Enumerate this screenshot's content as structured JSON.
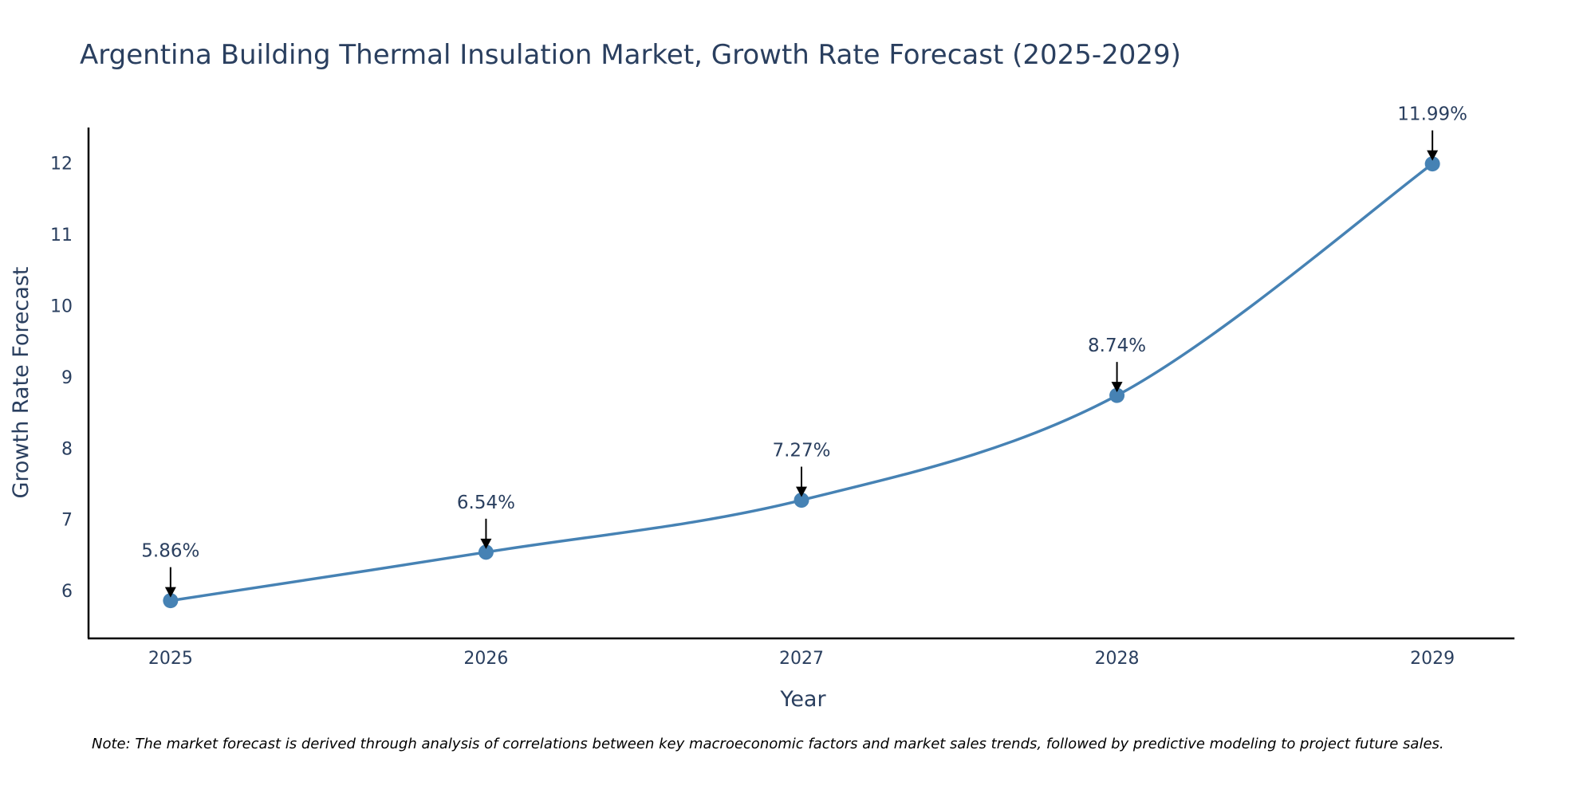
{
  "chart_data": {
    "type": "line",
    "title": "Argentina Building Thermal Insulation Market, Growth Rate Forecast (2025-2029)",
    "xlabel": "Year",
    "ylabel": "Growth Rate Forecast",
    "categories": [
      "2025",
      "2026",
      "2027",
      "2028",
      "2029"
    ],
    "values": [
      5.86,
      6.54,
      7.27,
      8.74,
      11.99
    ],
    "annotations": [
      "5.86%",
      "6.54%",
      "7.27%",
      "8.74%",
      "11.99%"
    ],
    "yticks": [
      6,
      7,
      8,
      9,
      10,
      11,
      12
    ],
    "ylim": [
      5.33,
      12.5
    ],
    "xlim": [
      -0.26,
      4.26
    ],
    "line_shape": "spline",
    "grid": false,
    "colors": {
      "line": "#4682b4",
      "marker": "#4682b4",
      "arrow": "#000000",
      "axis": "#000000",
      "text": "#2a3f5f"
    },
    "note": "Note: The market forecast is derived through analysis of correlations between key macroeconomic factors and market sales trends, followed by predictive modeling to project future sales."
  }
}
